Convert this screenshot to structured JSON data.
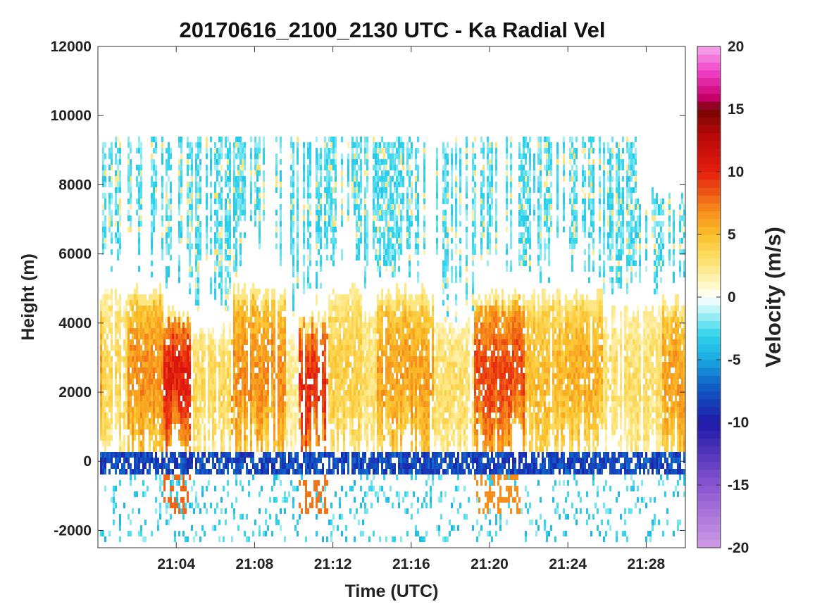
{
  "chart_data": {
    "type": "heatmap",
    "title": "20170616_2100_2130 UTC - Ka Radial Vel",
    "xlabel": "Time (UTC)",
    "ylabel": "Height (m)",
    "colorbar_label": "Velocity (m/s)",
    "x_range_minutes": [
      0,
      30
    ],
    "x_ticks": [
      {
        "label": "21:04",
        "minute": 4
      },
      {
        "label": "21:08",
        "minute": 8
      },
      {
        "label": "21:12",
        "minute": 12
      },
      {
        "label": "21:16",
        "minute": 16
      },
      {
        "label": "21:20",
        "minute": 20
      },
      {
        "label": "21:24",
        "minute": 24
      },
      {
        "label": "21:28",
        "minute": 28
      }
    ],
    "ylim": [
      -2500,
      12000
    ],
    "y_ticks": [
      {
        "label": "12000",
        "value": 12000
      },
      {
        "label": "10000",
        "value": 10000
      },
      {
        "label": "8000",
        "value": 8000
      },
      {
        "label": "6000",
        "value": 6000
      },
      {
        "label": "4000",
        "value": 4000
      },
      {
        "label": "2000",
        "value": 2000
      },
      {
        "label": "0",
        "value": 0
      },
      {
        "label": "-2000",
        "value": -2000
      }
    ],
    "color_range": [
      -20,
      20
    ],
    "color_ticks": [
      {
        "label": "20",
        "value": 20
      },
      {
        "label": "15",
        "value": 15
      },
      {
        "label": "10",
        "value": 10
      },
      {
        "label": "5",
        "value": 5
      },
      {
        "label": "0",
        "value": 0
      },
      {
        "label": "-5",
        "value": -5
      },
      {
        "label": "-10",
        "value": -10
      },
      {
        "label": "-15",
        "value": -15
      },
      {
        "label": "-20",
        "value": -20
      }
    ],
    "colormap": [
      {
        "value": -20,
        "color": "#cf9be6"
      },
      {
        "value": -15,
        "color": "#8a55d0"
      },
      {
        "value": -10,
        "color": "#1e18a8"
      },
      {
        "value": -7,
        "color": "#1060c8"
      },
      {
        "value": -5,
        "color": "#18a8de"
      },
      {
        "value": -3,
        "color": "#30d4ec"
      },
      {
        "value": -1,
        "color": "#bdf5f8"
      },
      {
        "value": 0,
        "color": "#ffffff"
      },
      {
        "value": 1,
        "color": "#fff7c8"
      },
      {
        "value": 3,
        "color": "#fde06a"
      },
      {
        "value": 5,
        "color": "#fbc02a"
      },
      {
        "value": 7,
        "color": "#f6891a"
      },
      {
        "value": 10,
        "color": "#e61d0e"
      },
      {
        "value": 13,
        "color": "#b50808"
      },
      {
        "value": 15,
        "color": "#780404"
      },
      {
        "value": 16,
        "color": "#cc0070"
      },
      {
        "value": 18,
        "color": "#f040c8"
      },
      {
        "value": 20,
        "color": "#f7a8ee"
      }
    ],
    "regimes": [
      {
        "start_min": 0.2,
        "end_min": 1.5,
        "velocity_mps": 3.5,
        "echo_top_m": 4800
      },
      {
        "start_min": 1.5,
        "end_min": 3.3,
        "velocity_mps": 6.5,
        "echo_top_m": 5000
      },
      {
        "start_min": 3.3,
        "end_min": 4.8,
        "velocity_mps": 10.0,
        "echo_top_m": 4300
      },
      {
        "start_min": 4.8,
        "end_min": 6.8,
        "velocity_mps": 3.5,
        "echo_top_m": 3800
      },
      {
        "start_min": 6.8,
        "end_min": 9.6,
        "velocity_mps": 6.5,
        "echo_top_m": 4900
      },
      {
        "start_min": 9.6,
        "end_min": 10.2,
        "velocity_mps": 2.0,
        "echo_top_m": 3600
      },
      {
        "start_min": 10.2,
        "end_min": 11.8,
        "velocity_mps": 9.5,
        "echo_top_m": 4200
      },
      {
        "start_min": 11.8,
        "end_min": 13.5,
        "velocity_mps": 4.0,
        "echo_top_m": 4900
      },
      {
        "start_min": 13.5,
        "end_min": 14.2,
        "velocity_mps": 3.0,
        "echo_top_m": 4200
      },
      {
        "start_min": 14.2,
        "end_min": 17.2,
        "velocity_mps": 6.0,
        "echo_top_m": 4900
      },
      {
        "start_min": 17.2,
        "end_min": 19.2,
        "velocity_mps": 3.0,
        "echo_top_m": 4000
      },
      {
        "start_min": 19.2,
        "end_min": 21.8,
        "velocity_mps": 8.5,
        "echo_top_m": 4800
      },
      {
        "start_min": 21.8,
        "end_min": 23.8,
        "velocity_mps": 5.0,
        "echo_top_m": 4700
      },
      {
        "start_min": 23.8,
        "end_min": 25.8,
        "velocity_mps": 5.5,
        "echo_top_m": 4800
      },
      {
        "start_min": 25.8,
        "end_min": 28.8,
        "velocity_mps": 3.0,
        "echo_top_m": 4300
      },
      {
        "start_min": 28.8,
        "end_min": 30.0,
        "velocity_mps": 6.0,
        "echo_top_m": 4600
      }
    ],
    "upper_layer": {
      "top_m": 9400,
      "velocity_mps": -2.5
    },
    "surface_band": {
      "height_m": -100,
      "velocity_mps": -8
    }
  }
}
